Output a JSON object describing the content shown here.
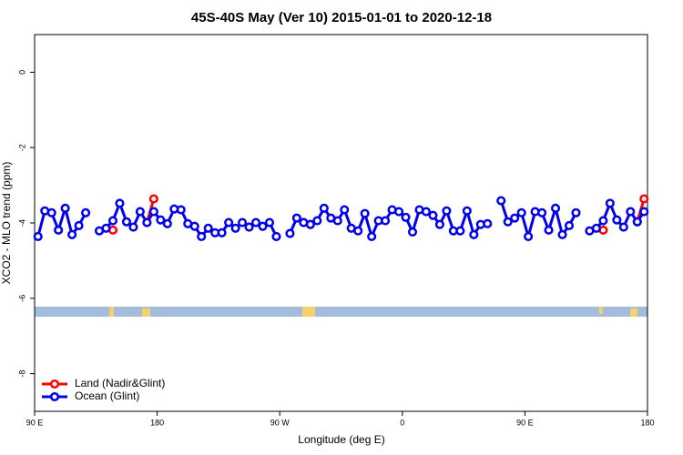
{
  "chart_data": {
    "type": "line",
    "title": "45S-40S May (Ver 10)   2015-01-01 to 2020-12-18",
    "x_label": "Longitude (deg E)",
    "y_label": "XCO2 - MLO trend (ppm)",
    "x": [
      92.5,
      97.5,
      102.5,
      107.5,
      112.5,
      117.5,
      122.5,
      127.5,
      132.5,
      137.5,
      142.5,
      147.5,
      152.5,
      157.5,
      162.5,
      167.5,
      172.5,
      177.5,
      182.5,
      187.5,
      192.5,
      197.5,
      202.5,
      207.5,
      212.5,
      217.5,
      222.5,
      227.5,
      232.5,
      237.5,
      242.5,
      247.5,
      252.5,
      257.5,
      262.5,
      267.5,
      272.5,
      277.5,
      282.5,
      287.5,
      292.5,
      297.5,
      302.5,
      307.5,
      312.5,
      317.5,
      322.5,
      327.5,
      332.5,
      337.5,
      342.5,
      347.5,
      352.5,
      357.5,
      362.5,
      367.5,
      372.5,
      377.5,
      382.5,
      387.5,
      392.5,
      397.5,
      402.5,
      407.5,
      412.5,
      417.5,
      422.5,
      427.5,
      432.5,
      437.5,
      442.5,
      447.5,
      452.5,
      457.5,
      462.5,
      467.5,
      472.5,
      477.5,
      482.5,
      487.5,
      492.5,
      497.5,
      502.5,
      507.5,
      512.5,
      517.5,
      522.5,
      527.5,
      532.5,
      537.5
    ],
    "series": [
      {
        "name": "Land (Nadir&Glint)",
        "color": "#ff0000",
        "values": [
          null,
          null,
          null,
          null,
          null,
          null,
          null,
          null,
          null,
          null,
          null,
          -4.19,
          null,
          null,
          null,
          null,
          -3.99,
          -3.36,
          null,
          null,
          null,
          null,
          null,
          null,
          null,
          null,
          null,
          null,
          null,
          null,
          null,
          null,
          null,
          null,
          null,
          null,
          null,
          null,
          null,
          -3.99,
          -4.04,
          null,
          null,
          null,
          null,
          null,
          null,
          null,
          null,
          null,
          null,
          null,
          null,
          null,
          null,
          null,
          null,
          null,
          null,
          null,
          null,
          null,
          null,
          null,
          null,
          null,
          null,
          null,
          null,
          null,
          null,
          null,
          null,
          null,
          null,
          null,
          null,
          null,
          null,
          null,
          null,
          null,
          null,
          -4.19,
          null,
          null,
          null,
          null,
          -3.97,
          -3.36
        ]
      },
      {
        "name": "Ocean (Glint)",
        "color": "#0000ee",
        "values": [
          -4.36,
          -3.68,
          -3.73,
          -4.19,
          -3.61,
          -4.31,
          -4.07,
          -3.73,
          null,
          -4.21,
          -4.14,
          -3.94,
          -3.48,
          -3.97,
          -4.11,
          -3.7,
          -3.99,
          -3.7,
          -3.92,
          -4.02,
          -3.63,
          -3.65,
          -4.02,
          -4.09,
          -4.36,
          -4.14,
          -4.26,
          -4.26,
          -3.99,
          -4.14,
          -3.99,
          -4.11,
          -3.99,
          -4.09,
          -3.99,
          -4.36,
          null,
          -4.28,
          -3.87,
          -3.99,
          -4.04,
          -3.94,
          -3.61,
          -3.87,
          -3.94,
          -3.65,
          -4.14,
          -4.21,
          -3.75,
          -4.36,
          -3.94,
          -3.94,
          -3.65,
          -3.7,
          -3.85,
          -4.24,
          -3.65,
          -3.7,
          -3.8,
          -4.04,
          -3.68,
          -4.21,
          -4.21,
          -3.68,
          -4.31,
          -4.04,
          -4.02,
          null,
          -3.41,
          -3.97,
          -3.87,
          -3.73,
          -4.36,
          -3.7,
          -3.73,
          -4.19,
          -3.61,
          -4.31,
          -4.07,
          -3.73,
          null,
          -4.21,
          -4.14,
          -3.94,
          -3.48,
          -3.92,
          -4.11,
          -3.7,
          -3.97,
          -3.7
        ]
      }
    ],
    "xlim": [
      90,
      540
    ],
    "xticks": [
      {
        "value": 90,
        "label": "90 E"
      },
      {
        "value": 180,
        "label": "180"
      },
      {
        "value": 270,
        "label": "90 W"
      },
      {
        "value": 360,
        "label": "0"
      },
      {
        "value": 450,
        "label": "90 E"
      },
      {
        "value": 540,
        "label": "180"
      }
    ],
    "ylim": [
      -9,
      1
    ],
    "yticks": [
      0,
      -2,
      -4,
      -6,
      -8
    ],
    "legend": "bottom-left"
  }
}
